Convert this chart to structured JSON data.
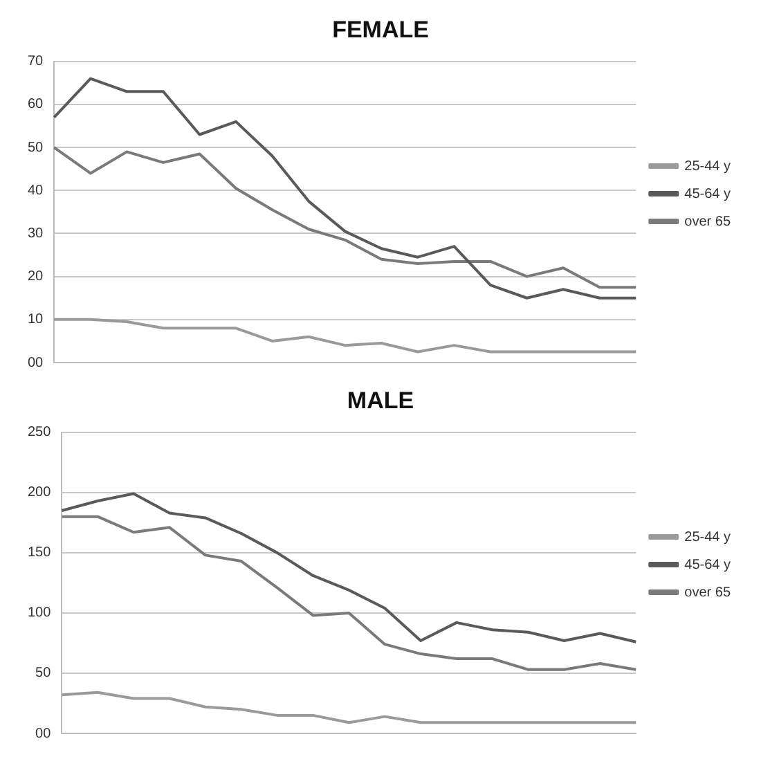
{
  "chart_data": [
    {
      "type": "line",
      "title": "FEMALE",
      "categories": [
        null,
        null,
        null,
        null,
        null,
        null,
        null,
        null,
        null,
        null,
        null,
        null,
        null,
        null,
        null,
        null,
        null
      ],
      "series": [
        {
          "name": "25-44 y",
          "color": "#9a9a9a",
          "values": [
            10,
            10,
            9.5,
            8,
            8,
            8,
            5,
            6,
            4,
            4.5,
            2.5,
            4,
            2.5,
            2.5,
            2.5,
            2.5,
            2.5
          ]
        },
        {
          "name": "45-64 y",
          "color": "#5a5a5a",
          "values": [
            57,
            66,
            63,
            63,
            53,
            56,
            48,
            37.5,
            30.5,
            26.5,
            24.5,
            27,
            18,
            15,
            17,
            15,
            15
          ]
        },
        {
          "name": "over 65",
          "color": "#7a7a7a",
          "values": [
            50,
            44,
            49,
            46.5,
            48.5,
            40.5,
            35.5,
            31,
            28.5,
            24,
            23,
            23.5,
            23.5,
            20,
            22,
            17.5,
            17.5
          ]
        }
      ],
      "ylim": [
        0,
        70
      ],
      "yticks": [
        {
          "value": 0,
          "label": "00"
        },
        10,
        20,
        30,
        40,
        50,
        60,
        70
      ],
      "grid": "y",
      "legend": "right",
      "tick_labels": "y",
      "marker": "none",
      "line_style": "solid"
    },
    {
      "type": "line",
      "title": "MALE",
      "categories": [
        null,
        null,
        null,
        null,
        null,
        null,
        null,
        null,
        null,
        null,
        null,
        null,
        null,
        null,
        null,
        null,
        null
      ],
      "series": [
        {
          "name": "25-44 y",
          "color": "#9a9a9a",
          "values": [
            32,
            34,
            29,
            29,
            22,
            20,
            15,
            15,
            9,
            14,
            9,
            9,
            9,
            9,
            9,
            9,
            9
          ]
        },
        {
          "name": "45-64 y",
          "color": "#5a5a5a",
          "values": [
            185,
            193,
            199,
            183,
            179,
            166,
            150,
            131,
            119,
            104,
            77,
            92,
            86,
            84,
            77,
            83,
            76
          ]
        },
        {
          "name": "over 65",
          "color": "#7a7a7a",
          "values": [
            180,
            180,
            167,
            171,
            148,
            143,
            121,
            98,
            100,
            74,
            66,
            62,
            62,
            53,
            53,
            58,
            53
          ]
        }
      ],
      "ylim": [
        0,
        250
      ],
      "yticks": [
        {
          "value": 0,
          "label": "00"
        },
        50,
        100,
        150,
        200,
        250
      ],
      "grid": "y",
      "legend": "right",
      "tick_labels": "y",
      "marker": "none",
      "line_style": "solid"
    }
  ]
}
